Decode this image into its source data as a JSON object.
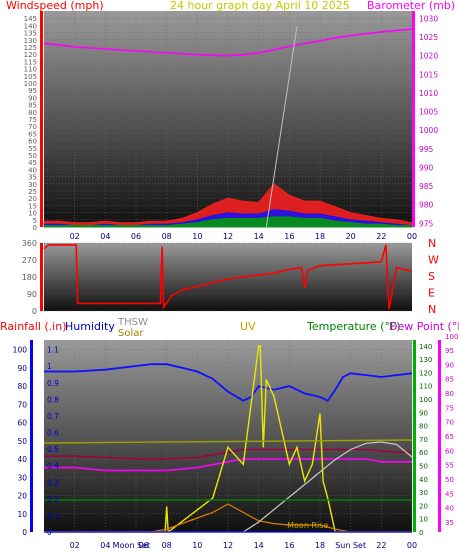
{
  "title": "24 hour graph day   April 10 2025",
  "colors": {
    "wind": "#ff0000",
    "barometer": "#ff00ff",
    "humidity": "#0000ff",
    "temperature": "#008000",
    "dewpoint": "#cc00cc",
    "uv": "#c8c800",
    "solar": "#c8a000",
    "thsw": "#c0c0c0",
    "rain": "#0000ff",
    "axisgray": "#808080"
  },
  "chart_data": [
    {
      "type": "line",
      "panel": "top",
      "left_axis_label": "Windspeed (mph)",
      "right_axis_label": "Barometer (mb)",
      "x_ticks": [
        "02",
        "04",
        "06",
        "08",
        "10",
        "12",
        "14",
        "16",
        "18",
        "20",
        "22",
        "00"
      ],
      "y_left_ticks": [
        "0",
        "5",
        "10",
        "15",
        "20",
        "25",
        "30",
        "35",
        "40",
        "45",
        "50",
        "55",
        "60",
        "65",
        "70",
        "75",
        "80",
        "85",
        "90",
        "95",
        "100",
        "105",
        "110",
        "115",
        "120",
        "125",
        "130",
        "135",
        "140",
        "145"
      ],
      "y_left_range": [
        0,
        150
      ],
      "y_right_ticks": [
        "975",
        "980",
        "985",
        "990",
        "995",
        "1000",
        "1005",
        "1010",
        "1015",
        "1020",
        "1025",
        "1030"
      ],
      "y_right_range": [
        974,
        1032
      ],
      "series": [
        {
          "role": "barometer",
          "x": [
            0,
            1,
            2,
            3,
            4,
            5,
            6,
            7,
            8,
            9,
            10,
            11,
            12,
            13,
            14,
            15,
            16,
            17,
            18,
            19,
            20,
            21,
            22,
            23,
            24
          ],
          "values": [
            1023.3,
            1022.9,
            1022.4,
            1022.1,
            1021.8,
            1021.5,
            1021.3,
            1021.0,
            1020.8,
            1020.5,
            1020.3,
            1020.1,
            1020.0,
            1020.2,
            1020.8,
            1021.6,
            1022.5,
            1023.3,
            1024.0,
            1024.8,
            1025.4,
            1025.9,
            1026.4,
            1026.8,
            1027.1
          ]
        },
        {
          "role": "wind gust",
          "x": [
            0,
            1,
            2,
            3,
            4,
            5,
            6,
            7,
            8,
            9,
            10,
            11,
            12,
            13,
            14,
            15,
            16,
            17,
            18,
            19,
            20,
            21,
            22,
            23,
            24
          ],
          "values": [
            4,
            4,
            3,
            3,
            4,
            3,
            3,
            4,
            4,
            6,
            10,
            16,
            20,
            18,
            17,
            30,
            22,
            18,
            18,
            14,
            10,
            8,
            6,
            5,
            3
          ]
        },
        {
          "role": "wind speed",
          "x": [
            0,
            1,
            2,
            3,
            4,
            5,
            6,
            7,
            8,
            9,
            10,
            11,
            12,
            13,
            14,
            15,
            16,
            17,
            18,
            19,
            20,
            21,
            22,
            23,
            24
          ],
          "values": [
            2,
            2,
            1,
            1,
            2,
            1,
            1,
            2,
            2,
            3,
            5,
            8,
            10,
            9,
            9,
            12,
            11,
            9,
            9,
            7,
            5,
            4,
            3,
            2,
            1
          ]
        },
        {
          "role": "wind average",
          "x": [
            0,
            1,
            2,
            3,
            4,
            5,
            6,
            7,
            8,
            9,
            10,
            11,
            12,
            13,
            14,
            15,
            16,
            17,
            18,
            19,
            20,
            21,
            22,
            23,
            24
          ],
          "values": [
            1,
            1,
            1,
            1,
            1,
            1,
            1,
            1,
            1,
            2,
            3,
            5,
            6,
            6,
            6,
            7,
            7,
            6,
            6,
            4,
            3,
            2,
            2,
            1,
            1
          ]
        }
      ]
    },
    {
      "type": "line",
      "panel": "middle",
      "left_ticks": [
        "0",
        "90",
        "180",
        "270",
        "360"
      ],
      "left_range": [
        0,
        360
      ],
      "right_labels": [
        "N",
        "W",
        "S",
        "E",
        "N"
      ],
      "series": [
        {
          "role": "wind direction",
          "x": [
            0,
            0.3,
            2.1,
            2.2,
            7.6,
            7.7,
            7.8,
            8.3,
            9.0,
            10.0,
            11.0,
            12.0,
            13.0,
            14.0,
            15.0,
            16.0,
            16.8,
            17.0,
            17.2,
            18.0,
            20.0,
            22.0,
            22.3,
            22.5,
            23.0,
            23.5,
            24.0
          ],
          "values": [
            330,
            350,
            350,
            40,
            40,
            340,
            20,
            80,
            110,
            130,
            150,
            170,
            180,
            190,
            200,
            220,
            230,
            120,
            215,
            240,
            250,
            260,
            350,
            10,
            230,
            220,
            210
          ]
        }
      ]
    },
    {
      "type": "line",
      "panel": "bottom",
      "labels": [
        "Rainfall (.in)",
        "Humidity",
        "THSW",
        "Solar",
        "UV",
        "Temperature (°F)",
        "Dew Point (°F)"
      ],
      "x_ticks": [
        "02",
        "04",
        "Moon Set",
        "06",
        "08",
        "10",
        "12",
        "14",
        "16",
        "18",
        "Sun Set",
        "22",
        "00"
      ],
      "y_rain_ticks": [
        "0",
        "0.1",
        "0.2",
        "0.3",
        "0.4",
        "0.5",
        "0.6",
        "0.7",
        "0.8",
        "0.9",
        "1",
        "1.1"
      ],
      "y_humidity_ticks": [
        "0",
        "10",
        "20",
        "30",
        "40",
        "50",
        "60",
        "70",
        "80",
        "90",
        "100"
      ],
      "y_temperature_ticks": [
        "0",
        "10",
        "20",
        "30",
        "40",
        "50",
        "60",
        "70",
        "80",
        "90",
        "100",
        "110",
        "120",
        "130",
        "140"
      ],
      "y_dewpoint_ticks": [
        "35",
        "40",
        "45",
        "50",
        "55",
        "60",
        "65",
        "70",
        "75",
        "80",
        "85",
        "90",
        "95",
        "100"
      ],
      "annotations": [
        "Moon Rise",
        "Sun Set",
        "Moon Set"
      ],
      "series": [
        {
          "role": "humidity",
          "x": [
            0,
            2,
            4,
            6,
            7,
            8,
            9,
            10,
            11,
            12,
            13,
            13.5,
            14,
            15,
            16,
            17,
            18,
            18.5,
            19,
            19.5,
            20,
            21,
            22,
            23,
            24
          ],
          "values": [
            88,
            88,
            89,
            91,
            92,
            92,
            90,
            88,
            84,
            77,
            72,
            74,
            80,
            78,
            80,
            76,
            74,
            72,
            78,
            85,
            87,
            86,
            85,
            86,
            87
          ]
        },
        {
          "role": "temperature",
          "x": [
            0,
            2,
            4,
            6,
            8,
            10,
            11,
            12,
            13,
            14,
            15,
            16,
            17,
            18,
            19,
            20,
            21,
            22,
            23,
            24
          ],
          "values": [
            57,
            57,
            56,
            55,
            55,
            56,
            58,
            60,
            62,
            62,
            62,
            62,
            62,
            62,
            62,
            62,
            62,
            61,
            60,
            60
          ]
        },
        {
          "role": "dew point",
          "x": [
            0,
            2,
            4,
            6,
            8,
            10,
            11,
            12,
            13,
            14,
            15,
            16,
            17,
            18,
            19,
            20,
            21,
            22,
            23,
            24
          ],
          "values": [
            54,
            54,
            53,
            53,
            53,
            54,
            55,
            56,
            57,
            57,
            57,
            57,
            57,
            57,
            57,
            57,
            57,
            56,
            56,
            56
          ]
        },
        {
          "role": "uv",
          "x": [
            0,
            7.9,
            8,
            8.1,
            11,
            12,
            13,
            14,
            14.1,
            14.3,
            14.5,
            15,
            15.5,
            16,
            16.5,
            17,
            17.5,
            18,
            18.2,
            18.5,
            19,
            24
          ],
          "values": [
            0,
            0,
            0.15,
            0,
            0.2,
            0.5,
            0.4,
            1.1,
            1.1,
            0.5,
            0.9,
            0.8,
            0.6,
            0.4,
            0.5,
            0.3,
            0.4,
            0.7,
            0.3,
            0.2,
            0,
            0
          ]
        },
        {
          "role": "solar",
          "x": [
            0,
            7,
            8,
            9,
            10,
            11,
            12,
            13,
            14,
            15,
            16,
            17,
            18,
            19,
            20,
            24
          ],
          "values": [
            0,
            0,
            2,
            6,
            10,
            14,
            20,
            14,
            8,
            6,
            5,
            5,
            5,
            2,
            0,
            0
          ]
        },
        {
          "role": "thsw",
          "x": [
            0,
            13,
            14,
            15,
            16,
            17,
            18,
            19,
            20,
            21,
            22,
            23,
            24
          ],
          "values": [
            0,
            0,
            8,
            18,
            28,
            38,
            48,
            58,
            66,
            71,
            72,
            70,
            60
          ]
        },
        {
          "role": "rain",
          "x": [
            0,
            24
          ],
          "values": [
            0,
            0
          ]
        }
      ]
    }
  ]
}
